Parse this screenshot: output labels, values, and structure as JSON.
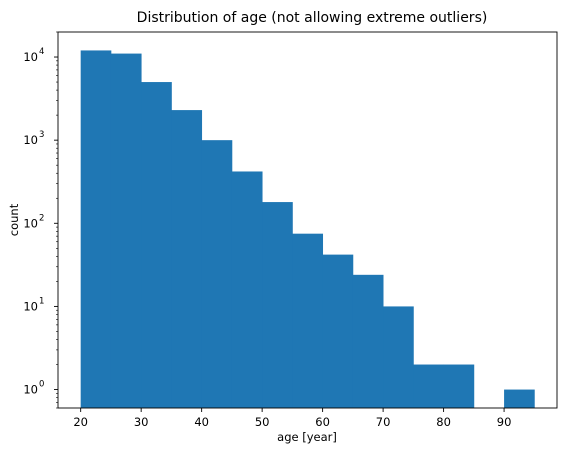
{
  "chart_data": {
    "type": "bar",
    "title": "Distribution of age (not allowing extreme outliers)",
    "xlabel": "age [year]",
    "ylabel": "count",
    "yscale": "log",
    "xlim": [
      16.25,
      98.75
    ],
    "ylim": [
      0.6,
      20000
    ],
    "grid": false,
    "legend": "none",
    "bar_color": "#1f77b4",
    "bins": [
      {
        "x0": 20,
        "x1": 25,
        "value": 12000
      },
      {
        "x0": 25,
        "x1": 30,
        "value": 11000
      },
      {
        "x0": 30,
        "x1": 35,
        "value": 5000
      },
      {
        "x0": 35,
        "x1": 40,
        "value": 2300
      },
      {
        "x0": 40,
        "x1": 45,
        "value": 1000
      },
      {
        "x0": 45,
        "x1": 50,
        "value": 420
      },
      {
        "x0": 50,
        "x1": 55,
        "value": 180
      },
      {
        "x0": 55,
        "x1": 60,
        "value": 75
      },
      {
        "x0": 60,
        "x1": 65,
        "value": 42
      },
      {
        "x0": 65,
        "x1": 70,
        "value": 24
      },
      {
        "x0": 70,
        "x1": 75,
        "value": 10
      },
      {
        "x0": 75,
        "x1": 80,
        "value": 2
      },
      {
        "x0": 80,
        "x1": 85,
        "value": 2
      },
      {
        "x0": 85,
        "x1": 90,
        "value": 0
      },
      {
        "x0": 90,
        "x1": 95,
        "value": 1
      }
    ],
    "x_ticks": [
      {
        "value": 20,
        "label": "20"
      },
      {
        "value": 30,
        "label": "30"
      },
      {
        "value": 40,
        "label": "40"
      },
      {
        "value": 50,
        "label": "50"
      },
      {
        "value": 60,
        "label": "60"
      },
      {
        "value": 70,
        "label": "70"
      },
      {
        "value": 80,
        "label": "80"
      },
      {
        "value": 90,
        "label": "90"
      }
    ],
    "y_ticks": [
      {
        "value": 1,
        "base": "10",
        "exp": "0"
      },
      {
        "value": 10,
        "base": "10",
        "exp": "1"
      },
      {
        "value": 100,
        "base": "10",
        "exp": "2"
      },
      {
        "value": 1000,
        "base": "10",
        "exp": "3"
      },
      {
        "value": 10000,
        "base": "10",
        "exp": "4"
      }
    ]
  }
}
